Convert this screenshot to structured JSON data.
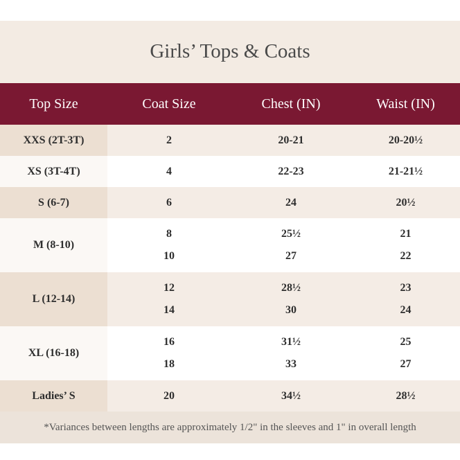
{
  "title": "Girls’ Tops & Coats",
  "table": {
    "header": [
      "Top Size",
      "Coat Size",
      "Chest (IN)",
      "Waist (IN)"
    ],
    "rows": [
      {
        "top_size": "XXS (2T-3T)",
        "lines": [
          [
            "2",
            "20-21",
            "20-20½"
          ]
        ]
      },
      {
        "top_size": "XS (3T-4T)",
        "lines": [
          [
            "4",
            "22-23",
            "21-21½"
          ]
        ]
      },
      {
        "top_size": "S (6-7)",
        "lines": [
          [
            "6",
            "24",
            "20½"
          ]
        ]
      },
      {
        "top_size": "M (8-10)",
        "lines": [
          [
            "8",
            "25½",
            "21"
          ],
          [
            "10",
            "27",
            "22"
          ]
        ]
      },
      {
        "top_size": "L (12-14)",
        "lines": [
          [
            "12",
            "28½",
            "23"
          ],
          [
            "14",
            "30",
            "24"
          ]
        ]
      },
      {
        "top_size": "XL (16-18)",
        "lines": [
          [
            "16",
            "31½",
            "25"
          ],
          [
            "18",
            "33",
            "27"
          ]
        ]
      },
      {
        "top_size": "Ladies’ S",
        "lines": [
          [
            "20",
            "34½",
            "28½"
          ]
        ]
      }
    ]
  },
  "footnote": "*Variances between lengths are approximately 1/2\" in the sleeves and 1\" in overall length"
}
